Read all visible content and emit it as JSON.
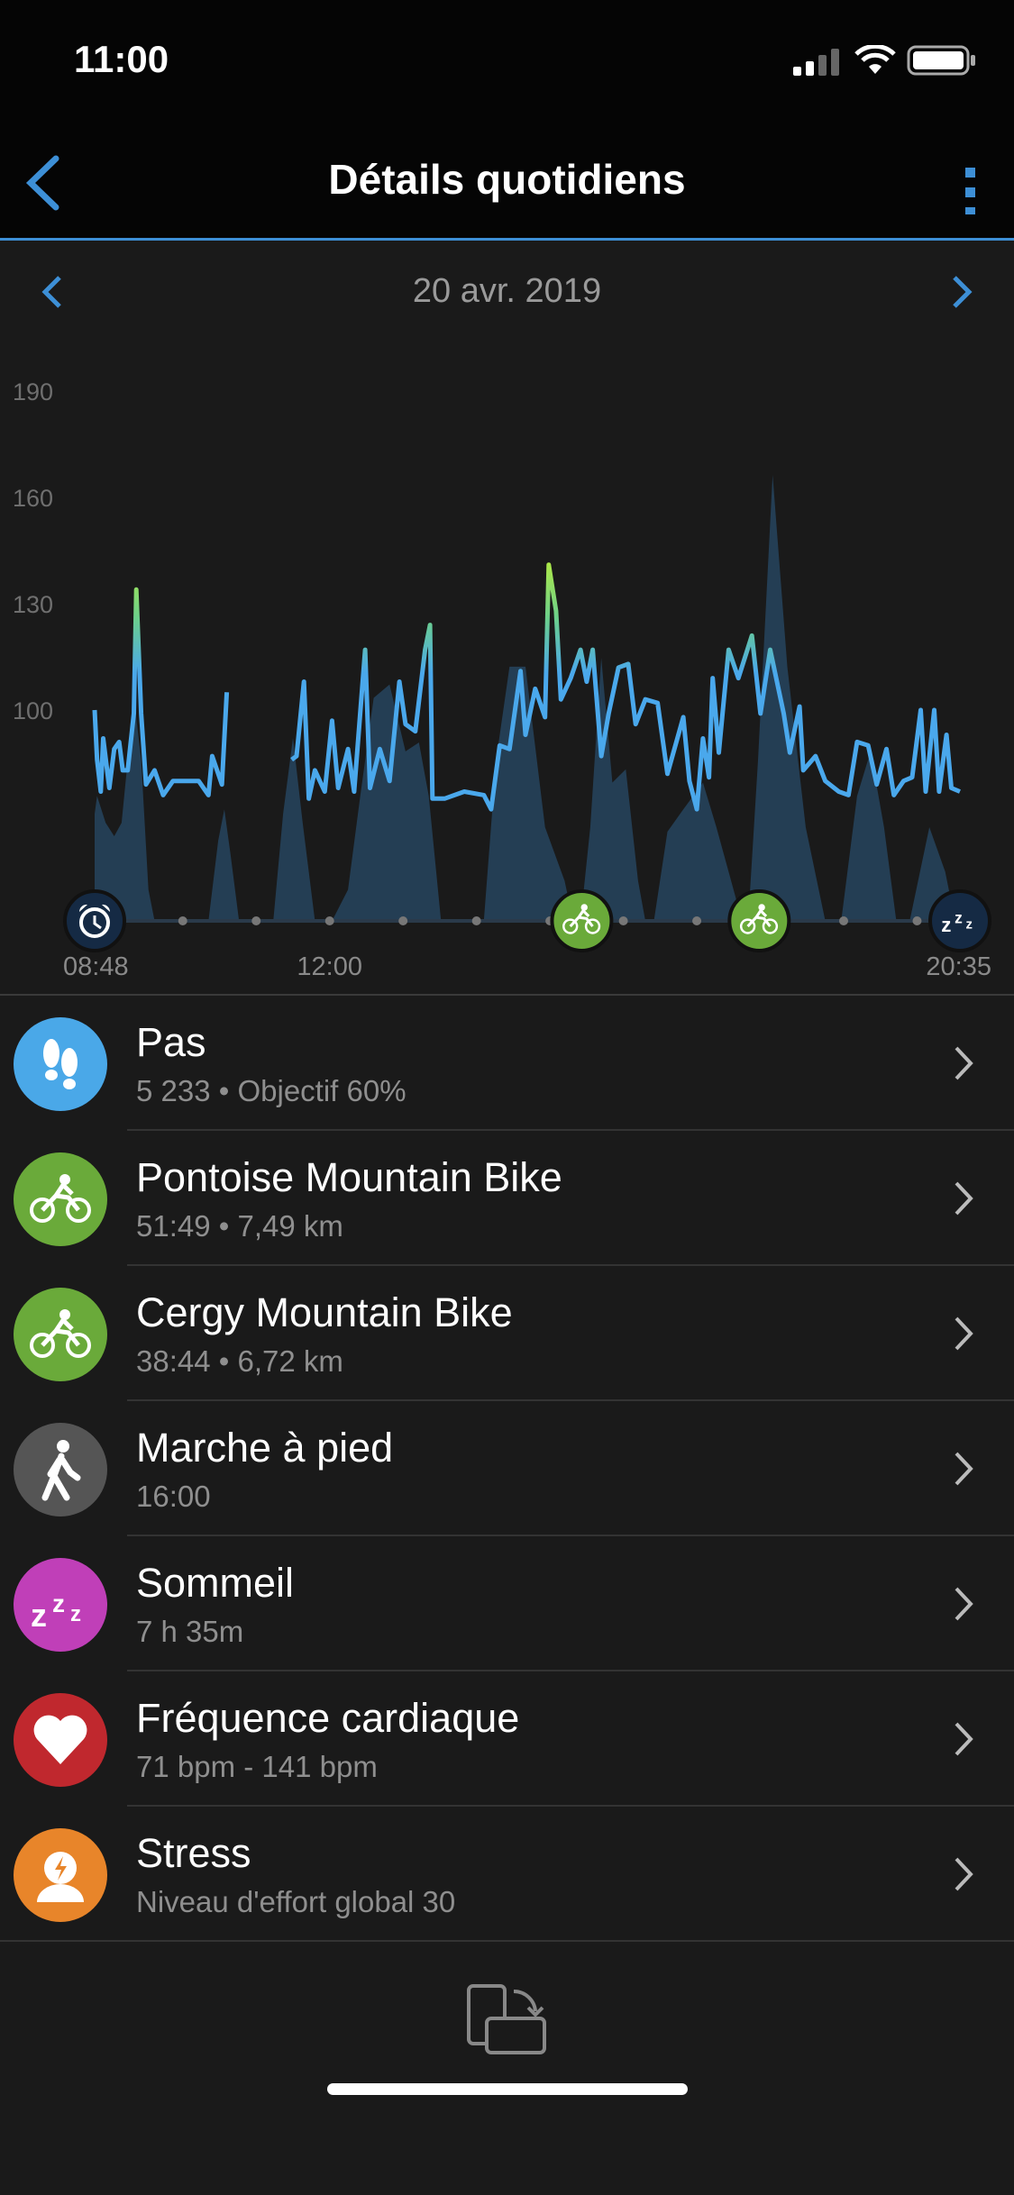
{
  "status_bar": {
    "time": "11:00",
    "icons": [
      "signal-icon",
      "wifi-icon",
      "battery-icon"
    ]
  },
  "header": {
    "title": "Détails quotidiens",
    "back_icon": "chevron-left-icon",
    "menu_icon": "more-vertical-icon"
  },
  "date_nav": {
    "date": "20 avr. 2019"
  },
  "colors": {
    "accent": "#3d8fd6",
    "hr_low": "#4aa8ec",
    "hr_high": "#b8ec3c",
    "area": "#243e54",
    "bike": "#6aaa3a",
    "steps": "#4aa8e8",
    "walk": "#555555",
    "sleep": "#c03fb8",
    "heart": "#c0282e",
    "stress": "#e8852a"
  },
  "chart_data": {
    "type": "line",
    "y_ticks": [
      "190",
      "160",
      "130",
      "100"
    ],
    "ylim": [
      64,
      200
    ],
    "x_ticks": [
      "08:48",
      "12:00",
      "20:35"
    ],
    "xlim": [
      "08:48",
      "20:35"
    ],
    "grid": false,
    "series": [
      {
        "kind": "line",
        "points": [
          [
            "08:48",
            100
          ],
          [
            "08:50",
            86
          ],
          [
            "08:53",
            77
          ],
          [
            "08:55",
            92
          ],
          [
            "09:00",
            78
          ],
          [
            "09:04",
            89
          ],
          [
            "09:08",
            91
          ],
          [
            "09:11",
            83
          ],
          [
            "09:15",
            83
          ],
          [
            "09:20",
            99
          ],
          [
            "09:22",
            134
          ],
          [
            "09:26",
            99
          ],
          [
            "09:30",
            79
          ],
          [
            "09:37",
            83
          ],
          [
            "09:44",
            76
          ],
          [
            "09:52",
            80
          ],
          [
            "10:03",
            80
          ],
          [
            "10:13",
            80
          ],
          [
            "10:21",
            76
          ],
          [
            "10:24",
            87
          ],
          [
            "10:32",
            79
          ],
          [
            "10:36",
            105
          ],
          null,
          [
            "11:29",
            86
          ],
          [
            "11:33",
            87
          ],
          [
            "11:39",
            108
          ],
          [
            "11:43",
            75
          ],
          [
            "11:48",
            83
          ],
          [
            "11:56",
            77
          ],
          [
            "12:02",
            97
          ],
          [
            "12:07",
            78
          ],
          [
            "12:15",
            89
          ],
          [
            "12:20",
            77
          ],
          [
            "12:29",
            117
          ],
          [
            "12:33",
            78
          ],
          [
            "12:41",
            89
          ],
          [
            "12:49",
            80
          ],
          [
            "12:57",
            108
          ],
          [
            "13:02",
            96
          ],
          [
            "13:10",
            94
          ],
          [
            "13:18",
            117
          ],
          [
            "13:22",
            124
          ],
          [
            "13:24",
            75
          ],
          [
            "13:34",
            75
          ],
          [
            "13:50",
            77
          ],
          [
            "14:06",
            76
          ],
          [
            "14:12",
            72
          ],
          [
            "14:19",
            90
          ],
          [
            "14:27",
            89
          ],
          [
            "14:36",
            111
          ],
          [
            "14:40",
            93
          ],
          [
            "14:48",
            106
          ],
          [
            "14:56",
            98
          ],
          [
            "14:59",
            141
          ],
          [
            "15:05",
            128
          ],
          [
            "15:09",
            103
          ],
          [
            "15:17",
            109
          ],
          [
            "15:25",
            117
          ],
          [
            "15:30",
            108
          ],
          [
            "15:35",
            117
          ],
          [
            "15:42",
            87
          ],
          [
            "15:48",
            99
          ],
          [
            "15:56",
            112
          ],
          [
            "16:04",
            113
          ],
          [
            "16:10",
            96
          ],
          [
            "16:18",
            103
          ],
          [
            "16:28",
            102
          ],
          [
            "16:36",
            82
          ],
          [
            "16:49",
            98
          ],
          [
            "16:54",
            80
          ],
          [
            "17:00",
            72
          ],
          [
            "17:05",
            92
          ],
          [
            "17:10",
            81
          ],
          [
            "17:13",
            109
          ],
          [
            "17:18",
            88
          ],
          [
            "17:26",
            117
          ],
          [
            "17:34",
            109
          ],
          [
            "17:45",
            121
          ],
          [
            "17:52",
            99
          ],
          [
            "18:00",
            117
          ],
          [
            "18:11",
            99
          ],
          [
            "18:16",
            88
          ],
          [
            "18:24",
            101
          ],
          [
            "18:27",
            83
          ],
          [
            "18:37",
            87
          ],
          [
            "18:45",
            80
          ],
          [
            "18:56",
            77
          ],
          [
            "19:04",
            76
          ],
          [
            "19:11",
            91
          ],
          [
            "19:20",
            90
          ],
          [
            "19:27",
            79
          ],
          [
            "19:35",
            89
          ],
          [
            "19:41",
            76
          ],
          [
            "19:49",
            80
          ],
          [
            "19:56",
            81
          ],
          [
            "20:03",
            100
          ],
          [
            "20:07",
            77
          ],
          [
            "20:14",
            100
          ],
          [
            "20:18",
            77
          ],
          [
            "20:24",
            93
          ],
          [
            "20:28",
            78
          ],
          [
            "20:35",
            77
          ]
        ]
      },
      {
        "kind": "area",
        "relative_level": true,
        "points": [
          [
            "08:48",
            0.24
          ],
          [
            "08:50",
            0.28
          ],
          [
            "08:57",
            0.22
          ],
          [
            "09:04",
            0.19
          ],
          [
            "09:10",
            0.22
          ],
          [
            "09:15",
            0.36
          ],
          [
            "09:21",
            0.48
          ],
          [
            "09:26",
            0.36
          ],
          [
            "09:32",
            0.07
          ],
          [
            "09:37",
            0
          ],
          [
            "10:21",
            0
          ],
          [
            "10:29",
            0.18
          ],
          [
            "10:34",
            0.25
          ],
          [
            "10:39",
            0.15
          ],
          [
            "10:46",
            0
          ],
          [
            "11:14",
            0
          ],
          [
            "11:22",
            0.24
          ],
          [
            "11:30",
            0.41
          ],
          [
            "11:38",
            0.22
          ],
          [
            "11:48",
            0
          ],
          [
            "12:02",
            0
          ],
          [
            "12:15",
            0.07
          ],
          [
            "12:25",
            0.28
          ],
          [
            "12:36",
            0.5
          ],
          [
            "12:49",
            0.53
          ],
          [
            "13:02",
            0.38
          ],
          [
            "13:13",
            0.4
          ],
          [
            "13:21",
            0.28
          ],
          [
            "13:31",
            0
          ],
          [
            "14:06",
            0
          ],
          [
            "14:16",
            0.36
          ],
          [
            "14:27",
            0.57
          ],
          [
            "14:40",
            0.57
          ],
          [
            "14:56",
            0.21
          ],
          [
            "15:12",
            0.09
          ],
          [
            "15:19",
            0
          ],
          [
            "15:25",
            0
          ],
          [
            "15:33",
            0.21
          ],
          [
            "15:42",
            0.59
          ],
          [
            "15:51",
            0.31
          ],
          [
            "16:02",
            0.34
          ],
          [
            "16:12",
            0.09
          ],
          [
            "16:18",
            0
          ],
          [
            "16:25",
            0
          ],
          [
            "16:36",
            0.2
          ],
          [
            "16:49",
            0.25
          ],
          [
            "17:05",
            0.31
          ],
          [
            "17:16",
            0.21
          ],
          [
            "17:26",
            0.11
          ],
          [
            "17:37",
            0
          ],
          [
            "17:42",
            0
          ],
          [
            "17:50",
            0.36
          ],
          [
            "18:02",
            1.0
          ],
          [
            "18:14",
            0.57
          ],
          [
            "18:29",
            0.21
          ],
          [
            "18:45",
            0
          ],
          [
            "18:58",
            0
          ],
          [
            "19:11",
            0.28
          ],
          [
            "19:22",
            0.38
          ],
          [
            "19:33",
            0.21
          ],
          [
            "19:43",
            0
          ],
          [
            "19:54",
            0
          ],
          [
            "20:10",
            0.21
          ],
          [
            "20:23",
            0.11
          ],
          [
            "20:31",
            0
          ],
          [
            "20:35",
            0
          ]
        ]
      }
    ],
    "timeline": {
      "hour_dots": [
        "10:00",
        "11:00",
        "12:00",
        "13:00",
        "14:00",
        "15:00",
        "16:00",
        "17:00",
        "18:00",
        "19:00",
        "20:00"
      ],
      "markers": [
        {
          "time": "08:48",
          "icon": "alarm-clock-icon"
        },
        {
          "time": "15:26",
          "icon": "bike-icon"
        },
        {
          "time": "17:51",
          "icon": "bike-icon"
        },
        {
          "time": "20:35",
          "icon": "sleep-zzz-icon"
        }
      ]
    }
  },
  "items": [
    {
      "title": "Pas",
      "subtitle": "5 233 • Objectif 60%",
      "icon": "footsteps-icon",
      "color": "#4aa8e8"
    },
    {
      "title": "Pontoise Mountain Bike",
      "subtitle": "51:49 • 7,49 km",
      "icon": "bike-icon",
      "color": "#6aaa3a"
    },
    {
      "title": "Cergy Mountain Bike",
      "subtitle": "38:44 • 6,72 km",
      "icon": "bike-icon",
      "color": "#6aaa3a"
    },
    {
      "title": "Marche à pied",
      "subtitle": "16:00",
      "icon": "walking-icon",
      "color": "#555555"
    },
    {
      "title": "Sommeil",
      "subtitle": "7 h 35m",
      "icon": "sleep-zzz-icon",
      "color": "#c03fb8"
    },
    {
      "title": "Fréquence cardiaque",
      "subtitle": "71 bpm - 141 bpm",
      "icon": "heart-icon",
      "color": "#c0282e"
    },
    {
      "title": "Stress",
      "subtitle": "Niveau d'effort global 30",
      "icon": "stress-icon",
      "color": "#e8852a"
    }
  ],
  "footer": {
    "icon": "rotate-device-icon"
  }
}
